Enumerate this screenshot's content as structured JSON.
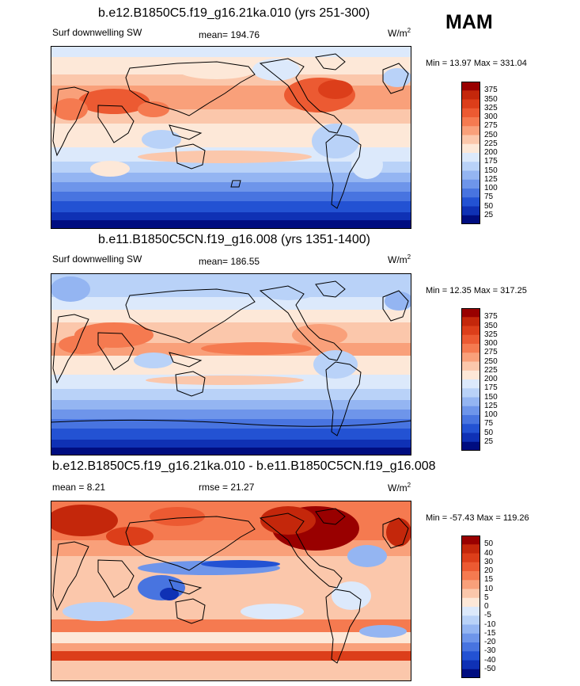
{
  "season": "MAM",
  "panels": [
    {
      "title": "b.e12.B1850C5.f19_g16.21ka.010 (yrs 251-300)",
      "left_label": "Surf downwelling SW",
      "center_label": "mean= 194.76",
      "units": "W/m",
      "units_sup": "2",
      "min_max": "Min =  13.97 Max = 331.04",
      "colorbar": {
        "labels": [
          "375",
          "350",
          "325",
          "300",
          "275",
          "250",
          "225",
          "200",
          "175",
          "150",
          "125",
          "100",
          "75",
          "50",
          "25"
        ],
        "colors": [
          "#990000",
          "#c4270b",
          "#dc3e1a",
          "#ec5a32",
          "#f57a50",
          "#f9a07a",
          "#fbc7ab",
          "#fde8d8",
          "#dce9fb",
          "#b9d2f8",
          "#94b5f2",
          "#6e95ea",
          "#4874e0",
          "#2352d3",
          "#0f31b5",
          "#000d80"
        ]
      }
    },
    {
      "title": "b.e11.B1850C5CN.f19_g16.008 (yrs 1351-1400)",
      "left_label": "Surf downwelling SW",
      "center_label": "mean= 186.55",
      "units": "W/m",
      "units_sup": "2",
      "min_max": "Min =  12.35 Max = 317.25",
      "colorbar": {
        "labels": [
          "375",
          "350",
          "325",
          "300",
          "275",
          "250",
          "225",
          "200",
          "175",
          "150",
          "125",
          "100",
          "75",
          "50",
          "25"
        ],
        "colors": [
          "#990000",
          "#c4270b",
          "#dc3e1a",
          "#ec5a32",
          "#f57a50",
          "#f9a07a",
          "#fbc7ab",
          "#fde8d8",
          "#dce9fb",
          "#b9d2f8",
          "#94b5f2",
          "#6e95ea",
          "#4874e0",
          "#2352d3",
          "#0f31b5",
          "#000d80"
        ]
      }
    },
    {
      "title": "b.e12.B1850C5.f19_g16.21ka.010 - b.e11.B1850C5CN.f19_g16.008",
      "left_label": "mean =   8.21",
      "center_label": "rmse =  21.27",
      "units": "W/m",
      "units_sup": "2",
      "min_max": "Min = -57.43 Max = 119.26",
      "colorbar": {
        "labels": [
          "50",
          "40",
          "30",
          "20",
          "15",
          "10",
          "5",
          "0",
          "-5",
          "-10",
          "-15",
          "-20",
          "-30",
          "-40",
          "-50"
        ],
        "colors": [
          "#990000",
          "#c4270b",
          "#dc3e1a",
          "#ec5a32",
          "#f57a50",
          "#f9a07a",
          "#fbc7ab",
          "#fde8d8",
          "#dce9fb",
          "#b9d2f8",
          "#94b5f2",
          "#6e95ea",
          "#4874e0",
          "#2352d3",
          "#0f31b5",
          "#000d80"
        ]
      }
    }
  ]
}
